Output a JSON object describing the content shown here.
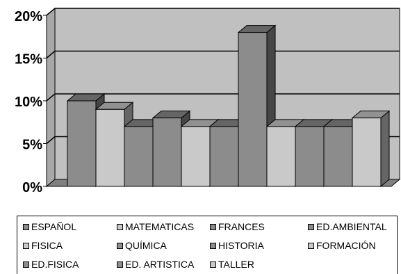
{
  "chart_data": {
    "type": "bar",
    "style": "3d-clustered-column",
    "series": [
      {
        "name": "ESPAÑOL",
        "value": 10,
        "color": "#8c8c8c"
      },
      {
        "name": "MATEMATICAS",
        "value": 9,
        "color": "#c9c9c9"
      },
      {
        "name": "FRANCES",
        "value": 7,
        "color": "#8c8c8c"
      },
      {
        "name": "ED.AMBIENTAL",
        "value": 8,
        "color": "#8c8c8c"
      },
      {
        "name": "FISICA",
        "value": 7,
        "color": "#c9c9c9"
      },
      {
        "name": "QUÍMICA",
        "value": 7,
        "color": "#8c8c8c"
      },
      {
        "name": "HISTORIA",
        "value": 18,
        "color": "#8c8c8c"
      },
      {
        "name": "FORMACIÓN",
        "value": 7,
        "color": "#c9c9c9"
      },
      {
        "name": "ED.FISICA",
        "value": 7,
        "color": "#8c8c8c"
      },
      {
        "name": "ED. ARTISTICA",
        "value": 7,
        "color": "#8c8c8c"
      },
      {
        "name": "TALLER",
        "value": 8,
        "color": "#c9c9c9"
      }
    ],
    "yticks": [
      "0%",
      "5%",
      "10%",
      "15%",
      "20%"
    ],
    "ylim": [
      0,
      20
    ],
    "grid": true,
    "legend_position": "bottom",
    "wall_color": "#c0c0c0"
  }
}
